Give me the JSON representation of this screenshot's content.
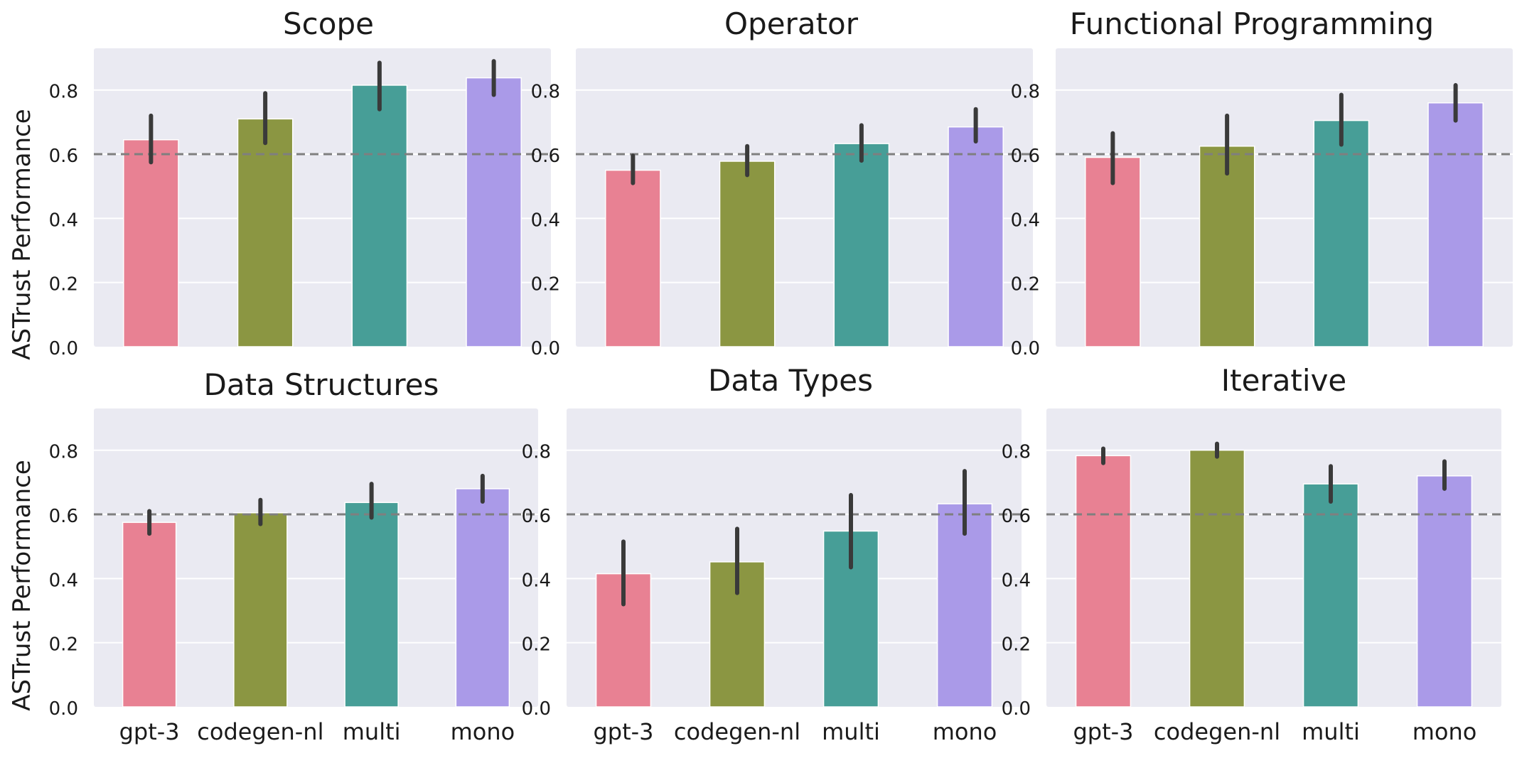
{
  "figure": {
    "ylabel": "ASTrust Performance",
    "categories": [
      "gpt-3",
      "codegen-nl",
      "multi",
      "mono"
    ],
    "colors": {
      "gpt-3": "#e88193",
      "codegen-nl": "#8b9642",
      "multi": "#479e97",
      "mono": "#aa9ae8",
      "plot_bg": "#eaeaf2",
      "grid": "#ffffff",
      "errorbar": "#3a3a3a",
      "reference_line": "#7f7f7f"
    }
  },
  "chart_data": [
    {
      "type": "bar",
      "title": "Scope",
      "categories": [
        "gpt-3",
        "codegen-nl",
        "multi",
        "mono"
      ],
      "values": [
        0.645,
        0.71,
        0.815,
        0.838
      ],
      "error_low": [
        0.575,
        0.635,
        0.74,
        0.785
      ],
      "error_high": [
        0.72,
        0.79,
        0.885,
        0.89
      ],
      "reference_line": 0.6,
      "ylim": [
        0,
        0.93
      ],
      "yticks": [
        "0.0",
        "0.2",
        "0.4",
        "0.6",
        "0.8"
      ],
      "show_xticks": false
    },
    {
      "type": "bar",
      "title": "Operator",
      "categories": [
        "gpt-3",
        "codegen-nl",
        "multi",
        "mono"
      ],
      "values": [
        0.55,
        0.578,
        0.633,
        0.685
      ],
      "error_low": [
        0.51,
        0.535,
        0.58,
        0.64
      ],
      "error_high": [
        0.595,
        0.625,
        0.69,
        0.74
      ],
      "reference_line": 0.6,
      "ylim": [
        0,
        0.93
      ],
      "yticks": [
        "0.0",
        "0.2",
        "0.4",
        "0.6",
        "0.8"
      ],
      "show_xticks": false
    },
    {
      "type": "bar",
      "title": "Functional Programming",
      "categories": [
        "gpt-3",
        "codegen-nl",
        "multi",
        "mono"
      ],
      "values": [
        0.59,
        0.625,
        0.705,
        0.76
      ],
      "error_low": [
        0.51,
        0.54,
        0.63,
        0.705
      ],
      "error_high": [
        0.665,
        0.72,
        0.785,
        0.815
      ],
      "reference_line": 0.6,
      "ylim": [
        0,
        0.93
      ],
      "yticks": [
        "0.0",
        "0.2",
        "0.4",
        "0.6",
        "0.8"
      ],
      "show_xticks": false
    },
    {
      "type": "bar",
      "title": "Data Structures",
      "categories": [
        "gpt-3",
        "codegen-nl",
        "multi",
        "mono"
      ],
      "values": [
        0.575,
        0.605,
        0.637,
        0.68
      ],
      "error_low": [
        0.54,
        0.57,
        0.59,
        0.64
      ],
      "error_high": [
        0.61,
        0.645,
        0.695,
        0.72
      ],
      "reference_line": 0.6,
      "ylim": [
        0,
        0.93
      ],
      "yticks": [
        "0.0",
        "0.2",
        "0.4",
        "0.6",
        "0.8"
      ],
      "show_xticks": true
    },
    {
      "type": "bar",
      "title": "Data Types",
      "categories": [
        "gpt-3",
        "codegen-nl",
        "multi",
        "mono"
      ],
      "values": [
        0.415,
        0.452,
        0.548,
        0.633
      ],
      "error_low": [
        0.32,
        0.355,
        0.435,
        0.54
      ],
      "error_high": [
        0.515,
        0.555,
        0.66,
        0.735
      ],
      "reference_line": 0.6,
      "ylim": [
        0,
        0.93
      ],
      "yticks": [
        "0.0",
        "0.2",
        "0.4",
        "0.6",
        "0.8"
      ],
      "show_xticks": true
    },
    {
      "type": "bar",
      "title": "Iterative",
      "categories": [
        "gpt-3",
        "codegen-nl",
        "multi",
        "mono"
      ],
      "values": [
        0.783,
        0.8,
        0.695,
        0.72
      ],
      "error_low": [
        0.76,
        0.78,
        0.64,
        0.68
      ],
      "error_high": [
        0.805,
        0.82,
        0.75,
        0.765
      ],
      "reference_line": 0.6,
      "ylim": [
        0,
        0.93
      ],
      "yticks": [
        "0.0",
        "0.2",
        "0.4",
        "0.6",
        "0.8"
      ],
      "show_xticks": true
    }
  ]
}
